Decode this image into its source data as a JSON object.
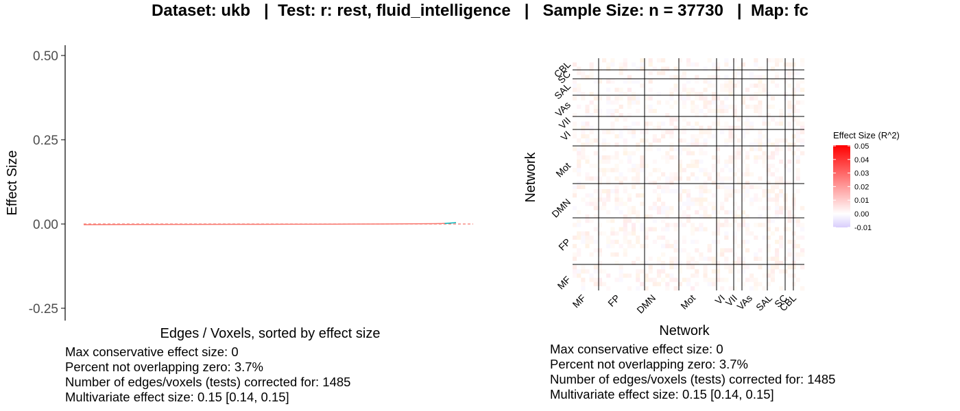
{
  "title": "Dataset: ukb   |  Test: r: rest, fluid_intelligence   |   Sample Size: n = 37730   |  Map: fc",
  "colors": {
    "axis": "#000000",
    "tick_text": "#4d4d4d",
    "zero_line": "#f8766d",
    "curve_main": "#f8766d",
    "curve_tail": "#00bfc4",
    "legend_high": "#ff0000",
    "legend_mid": "#ffffff",
    "legend_low": "#d8cdfc"
  },
  "chart_data": [
    {
      "type": "line",
      "xlabel": "Edges / Voxels, sorted by effect size",
      "ylabel": "Effect Size",
      "ylim": [
        -0.29,
        0.54
      ],
      "yticks": [
        -0.25,
        0.0,
        0.25,
        0.5
      ],
      "ytick_labels": [
        "-0.25",
        "0.00",
        "0.25",
        "0.50"
      ],
      "grid": false,
      "reference_line": {
        "y": 0,
        "style": "dashed"
      },
      "x": [
        1,
        200,
        400,
        600,
        800,
        1000,
        1200,
        1300,
        1400,
        1430,
        1450,
        1470,
        1485
      ],
      "series": [
        {
          "values": [
            -0.002,
            -0.0015,
            -0.0012,
            -0.001,
            -0.0008,
            -0.0005,
            0.0,
            0.0005,
            0.001,
            0.0015,
            0.002,
            0.003,
            0.004
          ]
        }
      ],
      "highlight_segment": {
        "x": [
          1440,
          1485
        ],
        "values": [
          0.0015,
          0.004
        ]
      }
    },
    {
      "type": "heatmap",
      "xlabel": "Network",
      "ylabel": "Network",
      "networks": [
        "MF",
        "FP",
        "DMN",
        "Mot",
        "VI",
        "VII",
        "VAs",
        "SAL",
        "SC",
        "CBL"
      ],
      "legend_title": "Effect Size (R^2)",
      "legend_ticks": [
        "0.05",
        "0.04",
        "0.03",
        "0.02",
        "0.01",
        "0.00",
        "-0.01"
      ],
      "value_range": [
        -0.01,
        0.05
      ]
    }
  ],
  "stats": {
    "max_conservative": "Max conservative effect size: 0",
    "percent_nonzero": "Percent not overlapping zero: 3.7%",
    "num_tests": "Number of edges/voxels (tests) corrected for: 1485",
    "multivariate": "Multivariate effect size: 0.15 [0.14, 0.15]"
  }
}
